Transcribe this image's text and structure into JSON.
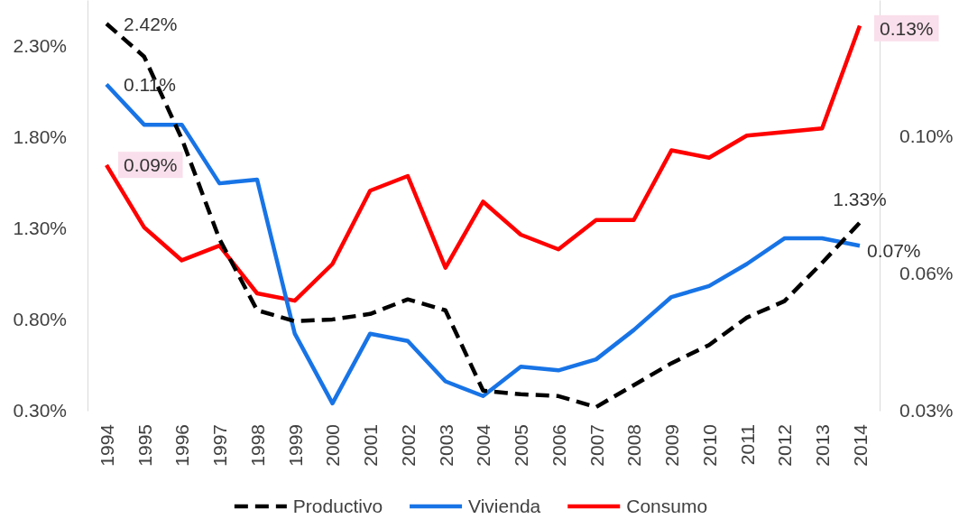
{
  "chart_data": {
    "type": "line",
    "categories": [
      "1994",
      "1995",
      "1996",
      "1997",
      "1998",
      "1999",
      "2000",
      "2001",
      "2002",
      "2003",
      "2004",
      "2005",
      "2006",
      "2007",
      "2008",
      "2009",
      "2010",
      "2011",
      "2012",
      "2013",
      "2014"
    ],
    "series": [
      {
        "name": "Productivo",
        "color": "#000000",
        "line_style": "dashed",
        "values": [
          2.42,
          2.24,
          1.79,
          1.24,
          0.85,
          0.79,
          0.8,
          0.83,
          0.91,
          0.85,
          0.41,
          0.39,
          0.38,
          0.32,
          0.44,
          0.56,
          0.66,
          0.81,
          0.9,
          1.11,
          1.33
        ],
        "value_labels": [
          "2.42%",
          null,
          null,
          null,
          null,
          null,
          null,
          null,
          null,
          null,
          null,
          null,
          null,
          null,
          null,
          null,
          null,
          null,
          null,
          null,
          "1.33%"
        ]
      },
      {
        "name": "Vivienda",
        "color": "#1874e6",
        "axis": "y2",
        "values": [
          0.114,
          0.103,
          0.103,
          0.087,
          0.088,
          0.046,
          0.027,
          0.046,
          0.044,
          0.033,
          0.029,
          0.037,
          0.036,
          0.039,
          0.047,
          0.056,
          0.059,
          0.065,
          0.072,
          0.072,
          0.07
        ],
        "value_labels": [
          "0.11%",
          null,
          null,
          null,
          null,
          null,
          null,
          null,
          null,
          null,
          null,
          null,
          null,
          null,
          null,
          null,
          null,
          null,
          null,
          null,
          "0.07%"
        ]
      },
      {
        "name": "Consumo",
        "color": "#ff0000",
        "axis": "y2",
        "values": [
          0.092,
          0.075,
          0.066,
          0.07,
          0.057,
          0.055,
          0.065,
          0.085,
          0.089,
          0.064,
          0.082,
          0.073,
          0.069,
          0.077,
          0.077,
          0.096,
          0.094,
          0.1,
          0.101,
          0.102,
          0.13
        ],
        "value_labels": [
          "0.09%",
          null,
          null,
          null,
          null,
          null,
          null,
          null,
          null,
          null,
          null,
          null,
          null,
          null,
          null,
          null,
          null,
          null,
          null,
          null,
          "0.13%"
        ]
      }
    ],
    "ylim": [
      0.3,
      2.55
    ],
    "yticks": [
      {
        "value": 0.3,
        "label": "0.30%"
      },
      {
        "value": 0.8,
        "label": "0.80%"
      },
      {
        "value": 1.3,
        "label": "1.30%"
      },
      {
        "value": 1.8,
        "label": "1.80%"
      },
      {
        "value": 2.3,
        "label": "2.30%"
      }
    ],
    "y2lim": [
      0.025,
      0.137
    ],
    "y2ticks": [
      {
        "value": 0.025,
        "label": "0.03%"
      },
      {
        "value": 0.0625,
        "label": "0.06%"
      },
      {
        "value": 0.1,
        "label": "0.10%"
      }
    ],
    "legend": "bottom"
  }
}
